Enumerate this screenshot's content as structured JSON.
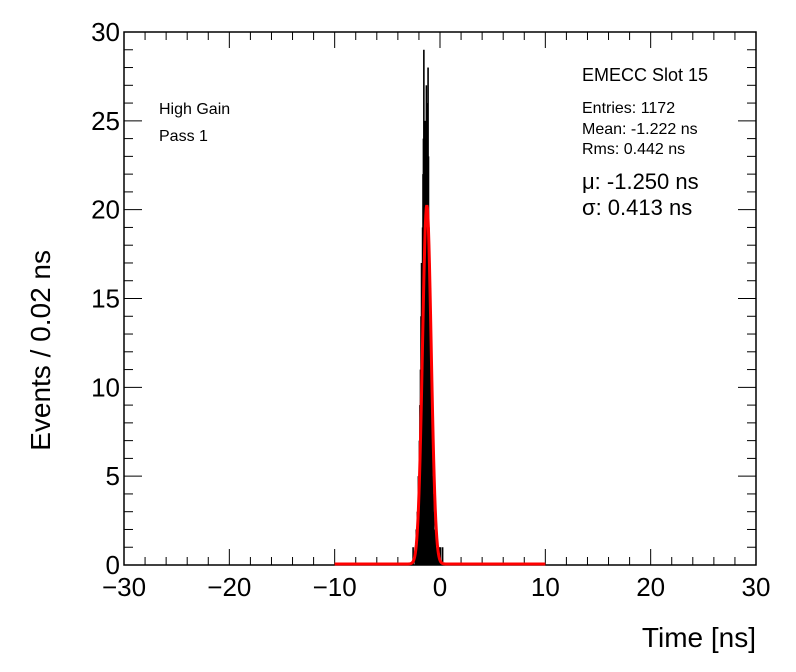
{
  "chart_data": {
    "type": "histogram",
    "title": "",
    "xlabel": "Time [ns]",
    "ylabel": "Events / 0.02 ns",
    "xlim": [
      -30,
      30
    ],
    "ylim": [
      0,
      30
    ],
    "x_ticks": [
      -30,
      -20,
      -10,
      0,
      10,
      20,
      30
    ],
    "x_tick_labels": [
      "−30",
      "−20",
      "−10",
      "0",
      "10",
      "20",
      "30"
    ],
    "y_ticks": [
      0,
      5,
      10,
      15,
      20,
      25,
      30
    ],
    "y_tick_labels": [
      "0",
      "5",
      "10",
      "15",
      "20",
      "25",
      "30"
    ],
    "grid": false,
    "histogram": {
      "name": "",
      "color": "#000000",
      "bin_width": 0.02,
      "bins": [
        {
          "x": -2.6,
          "y": 1
        },
        {
          "x": -2.4,
          "y": 1
        },
        {
          "x": -2.3,
          "y": 2
        },
        {
          "x": -2.2,
          "y": 3
        },
        {
          "x": -2.1,
          "y": 5
        },
        {
          "x": -2.0,
          "y": 7
        },
        {
          "x": -1.95,
          "y": 9
        },
        {
          "x": -1.9,
          "y": 11
        },
        {
          "x": -1.85,
          "y": 14
        },
        {
          "x": -1.8,
          "y": 17
        },
        {
          "x": -1.75,
          "y": 16
        },
        {
          "x": -1.7,
          "y": 19
        },
        {
          "x": -1.66,
          "y": 22
        },
        {
          "x": -1.62,
          "y": 24
        },
        {
          "x": -1.58,
          "y": 29
        },
        {
          "x": -1.54,
          "y": 23
        },
        {
          "x": -1.5,
          "y": 21
        },
        {
          "x": -1.46,
          "y": 25
        },
        {
          "x": -1.42,
          "y": 20
        },
        {
          "x": -1.38,
          "y": 24
        },
        {
          "x": -1.34,
          "y": 27
        },
        {
          "x": -1.3,
          "y": 22
        },
        {
          "x": -1.26,
          "y": 26
        },
        {
          "x": -1.22,
          "y": 18
        },
        {
          "x": -1.18,
          "y": 28
        },
        {
          "x": -1.14,
          "y": 23
        },
        {
          "x": -1.1,
          "y": 19
        },
        {
          "x": -1.06,
          "y": 16
        },
        {
          "x": -1.02,
          "y": 17
        },
        {
          "x": -0.98,
          "y": 14
        },
        {
          "x": -0.94,
          "y": 12
        },
        {
          "x": -0.9,
          "y": 10
        },
        {
          "x": -0.85,
          "y": 8
        },
        {
          "x": -0.8,
          "y": 7
        },
        {
          "x": -0.75,
          "y": 5
        },
        {
          "x": -0.7,
          "y": 4
        },
        {
          "x": -0.65,
          "y": 3
        },
        {
          "x": -0.6,
          "y": 2
        },
        {
          "x": -0.5,
          "y": 2
        },
        {
          "x": -0.4,
          "y": 1
        },
        {
          "x": -0.3,
          "y": 1
        },
        {
          "x": -0.2,
          "y": 1
        },
        {
          "x": -0.1,
          "y": 1
        },
        {
          "x": 0.0,
          "y": 1
        },
        {
          "x": 0.2,
          "y": 1
        }
      ]
    },
    "fit": {
      "type": "gaussian",
      "color": "#ff0000",
      "mu": -1.25,
      "sigma": 0.413,
      "amplitude": 20.2,
      "x_range": [
        -10,
        10
      ]
    },
    "annotations": {
      "left": [
        "High Gain",
        "Pass 1"
      ],
      "stats_title": "EMECC Slot 15",
      "stats": [
        "Entries: 1172",
        "Mean: -1.222 ns",
        "Rms: 0.442 ns"
      ],
      "fit_params": [
        "μ: -1.250 ns",
        "σ: 0.413 ns"
      ]
    }
  }
}
